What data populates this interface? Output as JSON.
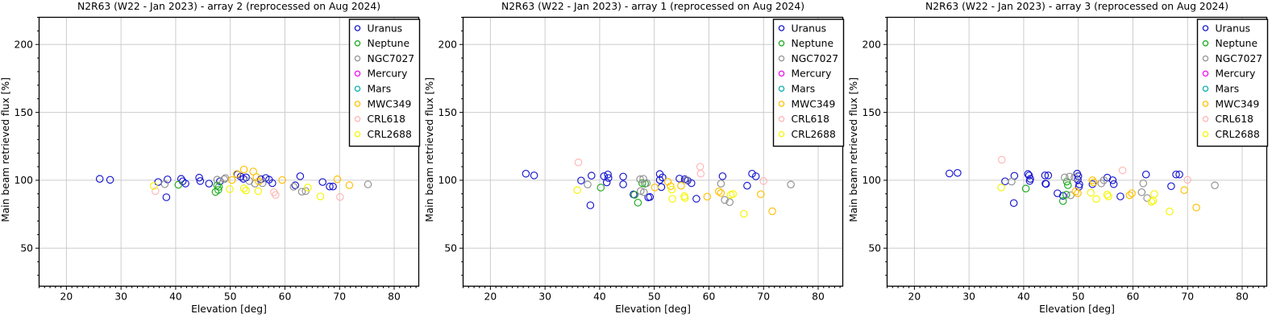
{
  "style": {
    "background": "#ffffff",
    "axis_color": "#000000",
    "grid_color": "#cccccc",
    "tick_label_color": "#000000",
    "legend_border_color": "#000000",
    "legend_fill": "#ffffff"
  },
  "chart_data": [
    {
      "type": "scatter",
      "title": "N2R63 (W22 - Jan 2023) - array 2 (reprocessed on Aug 2024)",
      "xlabel": "Elevation [deg]",
      "ylabel": "Main beam retrieved flux [%]",
      "xlim": [
        15,
        84.5
      ],
      "ylim": [
        22,
        220
      ],
      "x_ticks": [
        20,
        30,
        40,
        50,
        60,
        70,
        80
      ],
      "y_ticks": [
        50,
        100,
        150,
        200
      ],
      "x_minor_step": 1,
      "y_minor_step": 10,
      "grid": true,
      "legend_position": "upper right",
      "series": [
        {
          "name": "Uranus",
          "color": "#1515d0",
          "points": [
            [
              26.1,
              101
            ],
            [
              28,
              100.3
            ],
            [
              36.8,
              98.7
            ],
            [
              38.5,
              100.6
            ],
            [
              38.3,
              87.5
            ],
            [
              41,
              101
            ],
            [
              41.3,
              99.2
            ],
            [
              41.8,
              97.6
            ],
            [
              44.3,
              101.9
            ],
            [
              44.5,
              99.4
            ],
            [
              46.1,
              97.5
            ],
            [
              48.1,
              99.2
            ],
            [
              51.3,
              104.2
            ],
            [
              51.9,
              102.7
            ],
            [
              52.4,
              101.1
            ],
            [
              52.9,
              102.1
            ],
            [
              55.6,
              100.7
            ],
            [
              56.5,
              101.7
            ],
            [
              57.1,
              100.4
            ],
            [
              57.7,
              97.9
            ],
            [
              61.9,
              96.3
            ],
            [
              62.8,
              103
            ],
            [
              66.9,
              98.7
            ],
            [
              68.2,
              95.4
            ],
            [
              68.8,
              95.4
            ]
          ]
        },
        {
          "name": "Neptune",
          "color": "#1faa1f",
          "points": [
            [
              40.5,
              96.7
            ],
            [
              47.6,
              96.2
            ],
            [
              47.9,
              95.2
            ],
            [
              47.8,
              92.9
            ],
            [
              47.3,
              91.4
            ]
          ]
        },
        {
          "name": "NGC7027",
          "color": "#909090",
          "points": [
            [
              38,
              97.1
            ],
            [
              47.6,
              100.4
            ],
            [
              48.9,
              100.8
            ],
            [
              49.1,
              101.7
            ],
            [
              53.5,
              99.4
            ],
            [
              54.5,
              97.5
            ],
            [
              55.9,
              97.9
            ],
            [
              61.6,
              95.2
            ],
            [
              63.1,
              91.6
            ],
            [
              63.8,
              92
            ],
            [
              75.2,
              97
            ]
          ]
        },
        {
          "name": "Mercury",
          "color": "#f010f0",
          "points": []
        },
        {
          "name": "Mars",
          "color": "#10b0b0",
          "points": []
        },
        {
          "name": "MWC349",
          "color": "#ffbf00",
          "points": [
            [
              50.3,
              100.2
            ],
            [
              51.2,
              104.6
            ],
            [
              52.5,
              107.9
            ],
            [
              54.2,
              106.5
            ],
            [
              54.8,
              102.3
            ],
            [
              55.2,
              99.2
            ],
            [
              59.5,
              100.2
            ],
            [
              69.6,
              100.7
            ],
            [
              71.8,
              96.4
            ]
          ]
        },
        {
          "name": "CRL618",
          "color": "#ffb6b6",
          "points": [
            [
              36.3,
              92
            ],
            [
              58,
              91.2
            ],
            [
              58.3,
              89.2
            ],
            [
              70.1,
              87.7
            ]
          ]
        },
        {
          "name": "CRL2688",
          "color": "#f5f500",
          "points": [
            [
              36,
              95.8
            ],
            [
              49.9,
              93.5
            ],
            [
              52.5,
              94
            ],
            [
              52.9,
              92.5
            ],
            [
              55.1,
              92
            ],
            [
              64.2,
              94.7
            ],
            [
              66.5,
              88.1
            ]
          ]
        }
      ]
    },
    {
      "type": "scatter",
      "title": "N2R63 (W22 - Jan 2023) - array 1 (reprocessed on Aug 2024)",
      "xlabel": "Elevation [deg]",
      "ylabel": "Main beam retrieved flux [%]",
      "xlim": [
        15,
        84.5
      ],
      "ylim": [
        22,
        220
      ],
      "x_ticks": [
        20,
        30,
        40,
        50,
        60,
        70,
        80
      ],
      "y_ticks": [
        50,
        100,
        150,
        200
      ],
      "x_minor_step": 1,
      "y_minor_step": 10,
      "grid": true,
      "legend_position": "upper right",
      "series": [
        {
          "name": "Uranus",
          "color": "#1515d0",
          "points": [
            [
              26.5,
              104.8
            ],
            [
              28,
              103.6
            ],
            [
              36.6,
              99.8
            ],
            [
              38.5,
              103.4
            ],
            [
              38.3,
              81.6
            ],
            [
              40.8,
              103
            ],
            [
              41.5,
              104.2
            ],
            [
              41.6,
              101.7
            ],
            [
              41.3,
              98.4
            ],
            [
              44.3,
              102.7
            ],
            [
              44.3,
              97
            ],
            [
              46.2,
              89.6
            ],
            [
              48.9,
              87.4
            ],
            [
              49.2,
              87.7
            ],
            [
              51,
              104.6
            ],
            [
              51.5,
              102.1
            ],
            [
              51,
              100.2
            ],
            [
              51.3,
              95
            ],
            [
              54.6,
              101.2
            ],
            [
              55.6,
              100.8
            ],
            [
              56.1,
              99.8
            ],
            [
              56.8,
              97.9
            ],
            [
              57.7,
              86.4
            ],
            [
              62.5,
              103
            ],
            [
              67,
              96
            ],
            [
              67.9,
              104.8
            ],
            [
              68.6,
              102.9
            ]
          ]
        },
        {
          "name": "Neptune",
          "color": "#1faa1f",
          "points": [
            [
              40.2,
              94.6
            ],
            [
              46.4,
              89.3
            ],
            [
              47,
              83.5
            ],
            [
              47.8,
              97.9
            ],
            [
              48.3,
              97.5
            ]
          ]
        },
        {
          "name": "NGC7027",
          "color": "#909090",
          "points": [
            [
              37.8,
              96.9
            ],
            [
              47.4,
              100.7
            ],
            [
              48,
              101.1
            ],
            [
              48.6,
              97.9
            ],
            [
              47.5,
              92.1
            ],
            [
              48.1,
              91.2
            ],
            [
              55.9,
              100.2
            ],
            [
              62.2,
              97.5
            ],
            [
              62.9,
              85.5
            ],
            [
              63.8,
              83.9
            ],
            [
              75,
              96.9
            ]
          ]
        },
        {
          "name": "Mercury",
          "color": "#f010f0",
          "points": []
        },
        {
          "name": "Mars",
          "color": "#10b0b0",
          "points": []
        },
        {
          "name": "MWC349",
          "color": "#ffbf00",
          "points": [
            [
              50.1,
              94.7
            ],
            [
              52.5,
              98.9
            ],
            [
              53,
              95.6
            ],
            [
              54.9,
              96
            ],
            [
              59.7,
              87.9
            ],
            [
              61.8,
              91.8
            ],
            [
              62.2,
              90.6
            ],
            [
              69.5,
              89.7
            ],
            [
              71.6,
              77.2
            ]
          ]
        },
        {
          "name": "CRL618",
          "color": "#ffb6b6",
          "points": [
            [
              36.1,
              113.2
            ],
            [
              58.4,
              110
            ],
            [
              58.5,
              104.8
            ],
            [
              70,
              99.4
            ]
          ]
        },
        {
          "name": "CRL2688",
          "color": "#f5f500",
          "points": [
            [
              35.9,
              92.7
            ],
            [
              53.2,
              93.1
            ],
            [
              53.3,
              86.4
            ],
            [
              55.5,
              88.3
            ],
            [
              55.6,
              87
            ],
            [
              64,
              89.3
            ],
            [
              64.4,
              89.9
            ],
            [
              66.4,
              75.3
            ]
          ]
        }
      ]
    },
    {
      "type": "scatter",
      "title": "N2R63 (W22 - Jan 2023) - array 3 (reprocessed on Aug 2024)",
      "xlabel": "Elevation [deg]",
      "ylabel": "Main beam retrieved flux [%]",
      "xlim": [
        15,
        84.5
      ],
      "ylim": [
        22,
        220
      ],
      "x_ticks": [
        20,
        30,
        40,
        50,
        60,
        70,
        80
      ],
      "y_ticks": [
        50,
        100,
        150,
        200
      ],
      "x_minor_step": 1,
      "y_minor_step": 10,
      "grid": true,
      "legend_position": "upper right",
      "series": [
        {
          "name": "Uranus",
          "color": "#1515d0",
          "points": [
            [
              26.4,
              105
            ],
            [
              27.9,
              105.4
            ],
            [
              36.6,
              99.2
            ],
            [
              38.3,
              103.3
            ],
            [
              38.2,
              83.2
            ],
            [
              40.8,
              104.6
            ],
            [
              41,
              103.5
            ],
            [
              41.2,
              101
            ],
            [
              41.1,
              99.5
            ],
            [
              43.9,
              103.6
            ],
            [
              44,
              97.5
            ],
            [
              44.5,
              103.6
            ],
            [
              44.1,
              97.3
            ],
            [
              46.2,
              90.4
            ],
            [
              47.2,
              88.5
            ],
            [
              49.8,
              104.9
            ],
            [
              50,
              103
            ],
            [
              49.9,
              100.4
            ],
            [
              50.2,
              97
            ],
            [
              50.1,
              95.2
            ],
            [
              52.6,
              97.1
            ],
            [
              55.3,
              101.9
            ],
            [
              56.3,
              100
            ],
            [
              56.5,
              97.1
            ],
            [
              57.7,
              88.1
            ],
            [
              62.4,
              104.2
            ],
            [
              67,
              95.6
            ],
            [
              67.9,
              104.2
            ],
            [
              68.5,
              104.2
            ]
          ]
        },
        {
          "name": "Neptune",
          "color": "#1faa1f",
          "points": [
            [
              40.4,
              93.9
            ],
            [
              47.9,
              99
            ],
            [
              48.1,
              96.4
            ],
            [
              47.8,
              89.4
            ],
            [
              47.2,
              84.7
            ]
          ]
        },
        {
          "name": "NGC7027",
          "color": "#909090",
          "points": [
            [
              37.8,
              99
            ],
            [
              47.5,
              102.1
            ],
            [
              48.4,
              102.7
            ],
            [
              49.3,
              102.1
            ],
            [
              48.6,
              88.9
            ],
            [
              54.2,
              97.7
            ],
            [
              54.7,
              100
            ],
            [
              61.9,
              97.7
            ],
            [
              61.6,
              91.2
            ],
            [
              62.6,
              86.9
            ],
            [
              75,
              96.3
            ]
          ]
        },
        {
          "name": "Mercury",
          "color": "#f010f0",
          "points": []
        },
        {
          "name": "Mars",
          "color": "#10b0b0",
          "points": []
        },
        {
          "name": "MWC349",
          "color": "#ffbf00",
          "points": [
            [
              49.5,
              91.8
            ],
            [
              49.9,
              90.4
            ],
            [
              52.6,
              100
            ],
            [
              52.8,
              98.4
            ],
            [
              59.4,
              88.9
            ],
            [
              59.8,
              90.4
            ],
            [
              69.4,
              92.7
            ],
            [
              71.6,
              79.9
            ]
          ]
        },
        {
          "name": "CRL618",
          "color": "#ffb6b6",
          "points": [
            [
              36,
              115.1
            ],
            [
              58.1,
              107.3
            ],
            [
              70,
              100.3
            ]
          ]
        },
        {
          "name": "CRL2688",
          "color": "#f5f500",
          "points": [
            [
              35.9,
              94.7
            ],
            [
              52.3,
              90.8
            ],
            [
              53.3,
              86.2
            ],
            [
              55.3,
              89.4
            ],
            [
              55.5,
              88.1
            ],
            [
              63.4,
              84.2
            ],
            [
              63.7,
              85
            ],
            [
              63.9,
              89.9
            ],
            [
              66.7,
              77
            ]
          ]
        }
      ]
    }
  ]
}
